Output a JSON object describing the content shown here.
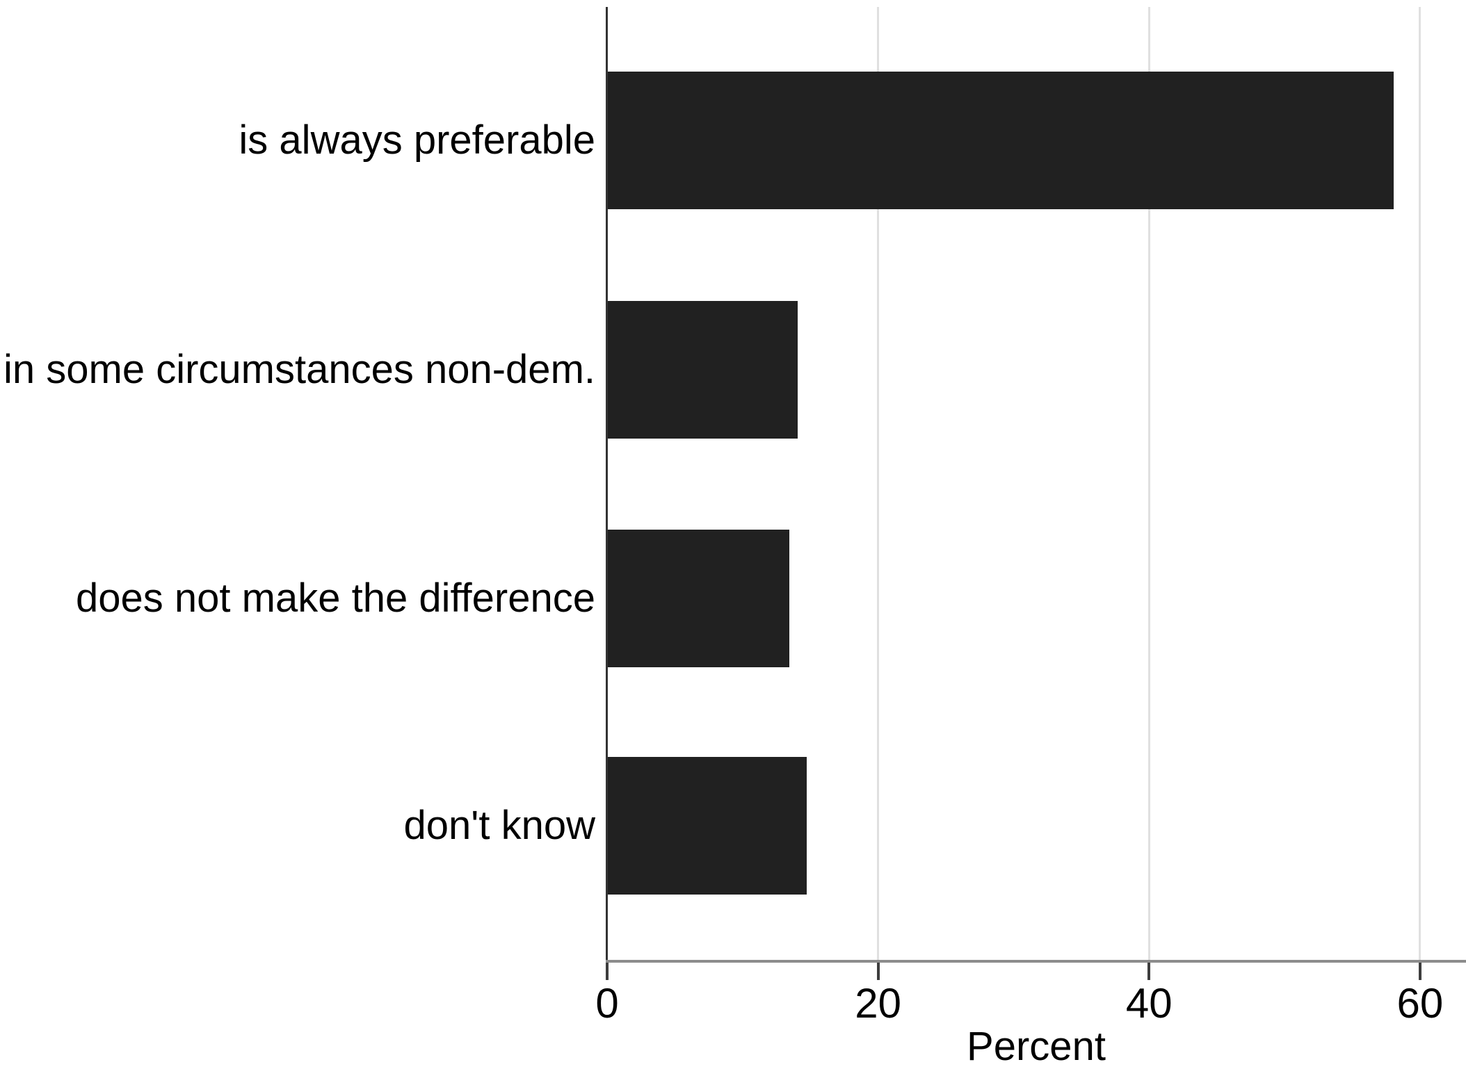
{
  "chart_data": {
    "type": "bar",
    "orientation": "horizontal",
    "title": "",
    "categories": [
      "is always preferable",
      "in some circumstances non-dem.",
      "does not make the difference",
      "don't know"
    ],
    "values": [
      58,
      14,
      13.4,
      14.7
    ],
    "xlabel": "Percent",
    "x_ticks": [
      0,
      20,
      40,
      60
    ],
    "xlim": [
      0,
      63.4
    ],
    "grid": true,
    "legend": false,
    "bar_color": "#212121",
    "axis_line_color": "#8c8c8c",
    "y_axis_line_color": "#333333",
    "gridline_color": "#e0e0e0",
    "text_color": "#000000"
  }
}
